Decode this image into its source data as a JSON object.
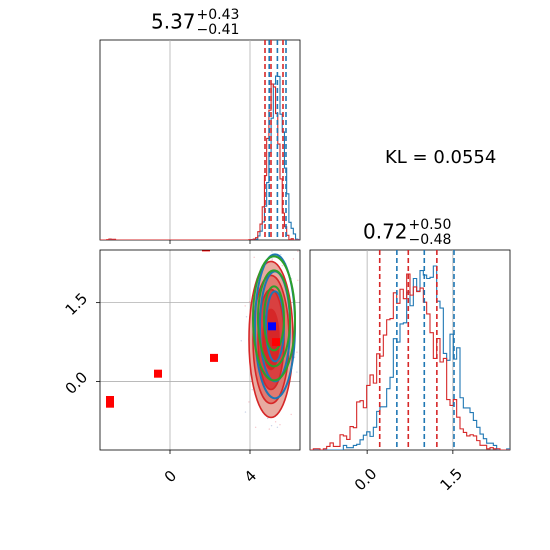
{
  "kl_text": "KL = 0.0554",
  "colors": {
    "red": "#d62728",
    "blue": "#1f77b4",
    "green": "#2ca02c",
    "marker_red": "#ff0000",
    "marker_blue": "#0000ff"
  },
  "chart_data": [
    {
      "type": "histogram",
      "panel": "top-left marginal (parameter 1)",
      "title_value": "5.37",
      "title_plus": "+0.43",
      "title_minus": "−0.41",
      "xlim": [
        -3.5,
        6.5
      ],
      "series": [
        {
          "color": "blue",
          "quantile_lines": [
            4.96,
            5.37,
            5.8
          ]
        },
        {
          "color": "red",
          "quantile_lines": [
            4.75,
            5.05,
            5.65
          ]
        }
      ],
      "grid": true
    },
    {
      "type": "contour",
      "panel": "bottom-left joint (parameter 1 vs parameter 2)",
      "xlim": [
        -3.5,
        6.5
      ],
      "ylim": [
        -1.3,
        2.5
      ],
      "xticks": [
        0,
        4
      ],
      "xtick_labels": [
        "0",
        "4"
      ],
      "yticks": [
        0.0,
        1.5
      ],
      "ytick_labels": [
        "0.0",
        "1.5"
      ],
      "red_markers": [
        {
          "x": -3.0,
          "y": -0.35
        },
        {
          "x": -3.0,
          "y": -0.42
        },
        {
          "x": -0.6,
          "y": 0.15
        },
        {
          "x": 1.8,
          "y": 2.55
        },
        {
          "x": 2.2,
          "y": 0.45
        },
        {
          "x": 5.3,
          "y": 0.75
        }
      ],
      "blue_marker": {
        "x": 5.1,
        "y": 1.05
      },
      "contour_centers": {
        "red": {
          "x": 5.05,
          "y": 0.8
        },
        "blue": {
          "x": 5.2,
          "y": 1.05
        },
        "green": {
          "x": 5.2,
          "y": 1.2
        }
      },
      "grid": true
    },
    {
      "type": "histogram",
      "panel": "bottom-right marginal (parameter 2)",
      "title_value": "0.72",
      "title_plus": "+0.50",
      "title_minus": "−0.48",
      "xlim": [
        -1.0,
        2.5
      ],
      "xticks": [
        0.0,
        1.5
      ],
      "xtick_labels": [
        "0.0",
        "1.5"
      ],
      "series": [
        {
          "color": "blue",
          "quantile_lines": [
            0.52,
            1.0,
            1.52
          ]
        },
        {
          "color": "red",
          "quantile_lines": [
            0.22,
            0.72,
            1.22
          ]
        }
      ],
      "grid": true
    }
  ]
}
